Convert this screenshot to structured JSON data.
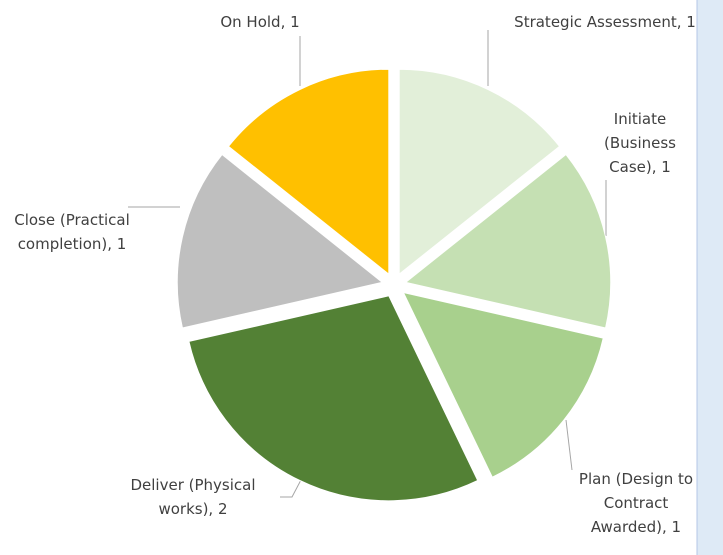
{
  "chart_data": {
    "type": "pie",
    "categories": [
      "Strategic Assessment",
      "Initiate (Business Case)",
      "Plan (Design to Contract Awarded)",
      "Deliver (Physical works)",
      "Close (Practical completion)",
      "On Hold"
    ],
    "values": [
      1,
      1,
      1,
      2,
      1,
      1
    ],
    "value_labels": [
      "Strategic Assessment, 1",
      "Initiate (Business Case), 1",
      "Plan (Design to Contract Awarded), 1",
      "Deliver (Physical works), 2",
      "Close (Practical completion), 1",
      "On Hold, 1"
    ],
    "colors": [
      "#e2efd9",
      "#c5e0b3",
      "#a8d08d",
      "#538135",
      "#bfbfbf",
      "#ffc000"
    ]
  }
}
